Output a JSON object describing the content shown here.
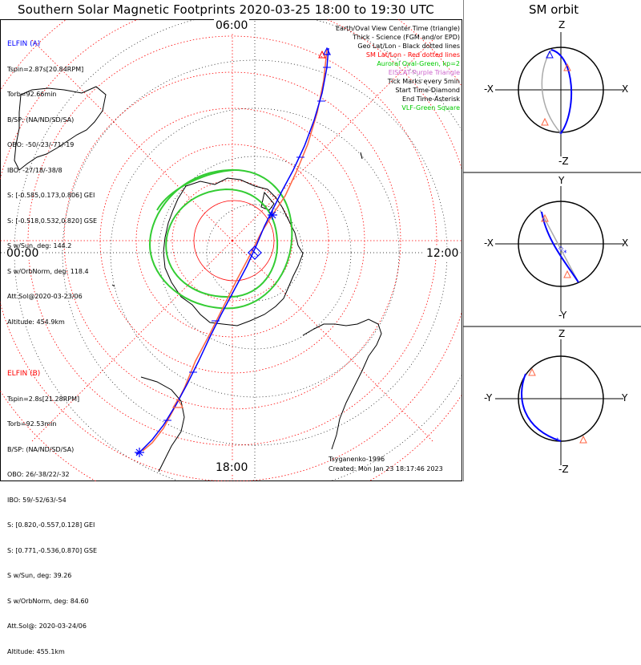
{
  "title": "Southern Solar Magnetic Footprints 2020-03-25 18:00 to 19:30 UTC",
  "sm_title": "SM orbit",
  "hours": {
    "top": "06:00",
    "left": "00:00",
    "right": "12:00",
    "bottom": "18:00"
  },
  "legend": [
    {
      "text": "Earth/Oval View Center Time (triangle)",
      "color": "#000000"
    },
    {
      "text": "Thick - Science (FGM and/or EPD)",
      "color": "#000000"
    },
    {
      "text": "Geo Lat/Lon - Black dotted lines",
      "color": "#000000"
    },
    {
      "text": "SM Lat/Lon - Red dotted lines",
      "color": "#ff0000"
    },
    {
      "text": "Auroral Oval-Green, kp=2",
      "color": "#00cc00"
    },
    {
      "text": "EISCAT-Purple Triangle",
      "color": "#cc66cc"
    },
    {
      "text": "Tick Marks every 5min",
      "color": "#000000"
    },
    {
      "text": "Start Time-Diamond",
      "color": "#000000"
    },
    {
      "text": "End Time-Asterisk",
      "color": "#000000"
    },
    {
      "text": "VLF-Green Square",
      "color": "#00cc00"
    }
  ],
  "elfin_a": {
    "name": "ELFIN (A)",
    "color": "#0000ff",
    "lines": [
      "Tspin=2.87s[20.84RPM]",
      "Torb=92.66min",
      "B/SP: (NA/ND/SD/SA)",
      "OBO: -50/-23/-71/-19",
      "IBO: -27/18/-38/8",
      "S: [-0.585,0.173,0.806] GEI",
      "S: [-0.518,0.532,0.820] GSE",
      "S w/Sun, deg: 144.2",
      "S w/OrbNorm, deg: 118.4",
      "Att.Sol@2020-03-23/06",
      "Altitude: 454.9km"
    ]
  },
  "elfin_b": {
    "name": "ELFIN (B)",
    "color": "#ff0000",
    "lines": [
      "Tspin=2.8s[21.28RPM]",
      "Torb=92.53min",
      "B/SP: (NA/ND/SD/SA)",
      "OBO: 26/-38/22/-32",
      "IBO: 59/-52/63/-54",
      "S: [0.820,-0.557,0.128] GEI",
      "S: [0.771,-0.536,0.870] GSE",
      "S w/Sun, deg: 39.26",
      "S w/OrbNorm, deg: 84.60",
      "Att.Sol@: 2020-03-24/06",
      "Altitude: 455.1km"
    ]
  },
  "credit": {
    "author": "Tsyganenko-1996",
    "created": "Created: Mon Jan 23 18:17:46 2023"
  },
  "panels": [
    {
      "top": "Z",
      "bottom": "-Z",
      "left": "-X",
      "right": "X"
    },
    {
      "top": "Y",
      "bottom": "-Y",
      "left": "-X",
      "right": "X"
    },
    {
      "top": "Z",
      "bottom": "-Z",
      "left": "-Y",
      "right": "Y"
    }
  ],
  "colors": {
    "elfin_a": "#0000ff",
    "elfin_b": "#ff6644",
    "oval": "#33cc33",
    "sm_grid": "#ff0000",
    "geo_grid": "#000000"
  }
}
